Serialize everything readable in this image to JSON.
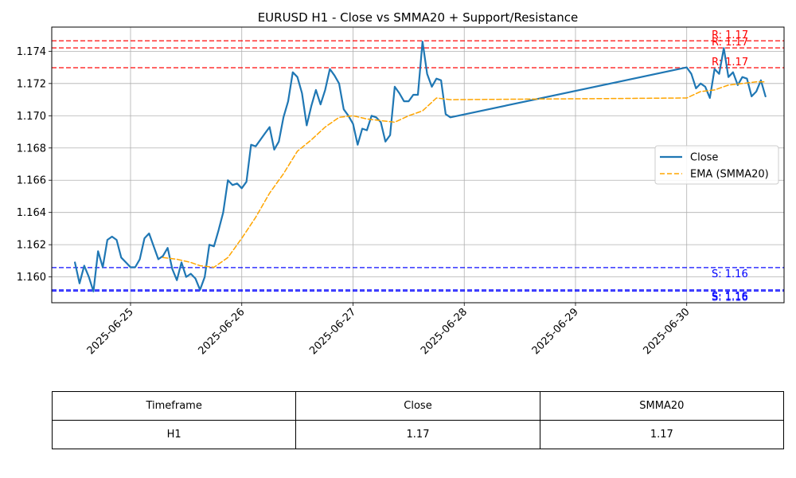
{
  "chart_data": {
    "type": "line",
    "title": "EURUSD H1 - Close vs SMMA20 + Support/Resistance",
    "xlabel": "",
    "ylabel": "",
    "ylim": [
      1.1584,
      1.1755
    ],
    "y_ticks": [
      1.16,
      1.162,
      1.164,
      1.166,
      1.168,
      1.17,
      1.172,
      1.174
    ],
    "y_tick_labels": [
      "1.160",
      "1.162",
      "1.164",
      "1.166",
      "1.168",
      "1.170",
      "1.172",
      "1.174"
    ],
    "x_tick_labels": [
      "2025-06-25",
      "2025-06-26",
      "2025-06-27",
      "2025-06-28",
      "2025-06-29",
      "2025-06-30"
    ],
    "grid": true,
    "legend": {
      "position": "center-right",
      "entries": [
        "Close",
        "EMA (SMMA20)"
      ]
    },
    "colors": {
      "close": "#1f77b4",
      "smma": "#ffa500",
      "resistance": "#ff0000",
      "support": "#0000ff"
    },
    "x_range": [
      "2025-06-24 07:00",
      "2025-06-30 21:00"
    ],
    "series": [
      {
        "name": "Close",
        "style": "solid",
        "x": [
          "2025-06-24 12:00",
          "2025-06-24 13:00",
          "2025-06-24 14:00",
          "2025-06-24 15:00",
          "2025-06-24 16:00",
          "2025-06-24 17:00",
          "2025-06-24 18:00",
          "2025-06-24 19:00",
          "2025-06-24 20:00",
          "2025-06-24 21:00",
          "2025-06-24 22:00",
          "2025-06-24 23:00",
          "2025-06-25 00:00",
          "2025-06-25 01:00",
          "2025-06-25 02:00",
          "2025-06-25 03:00",
          "2025-06-25 04:00",
          "2025-06-25 05:00",
          "2025-06-25 06:00",
          "2025-06-25 07:00",
          "2025-06-25 08:00",
          "2025-06-25 09:00",
          "2025-06-25 10:00",
          "2025-06-25 11:00",
          "2025-06-25 12:00",
          "2025-06-25 13:00",
          "2025-06-25 14:00",
          "2025-06-25 15:00",
          "2025-06-25 16:00",
          "2025-06-25 17:00",
          "2025-06-25 18:00",
          "2025-06-25 19:00",
          "2025-06-25 20:00",
          "2025-06-25 21:00",
          "2025-06-25 22:00",
          "2025-06-25 23:00",
          "2025-06-26 00:00",
          "2025-06-26 01:00",
          "2025-06-26 02:00",
          "2025-06-26 03:00",
          "2025-06-26 04:00",
          "2025-06-26 05:00",
          "2025-06-26 06:00",
          "2025-06-26 07:00",
          "2025-06-26 08:00",
          "2025-06-26 09:00",
          "2025-06-26 10:00",
          "2025-06-26 11:00",
          "2025-06-26 12:00",
          "2025-06-26 13:00",
          "2025-06-26 14:00",
          "2025-06-26 15:00",
          "2025-06-26 16:00",
          "2025-06-26 17:00",
          "2025-06-26 18:00",
          "2025-06-26 19:00",
          "2025-06-26 20:00",
          "2025-06-26 21:00",
          "2025-06-26 22:00",
          "2025-06-26 23:00",
          "2025-06-27 00:00",
          "2025-06-27 01:00",
          "2025-06-27 02:00",
          "2025-06-27 03:00",
          "2025-06-27 04:00",
          "2025-06-27 05:00",
          "2025-06-27 06:00",
          "2025-06-27 07:00",
          "2025-06-27 08:00",
          "2025-06-27 09:00",
          "2025-06-27 10:00",
          "2025-06-27 11:00",
          "2025-06-27 12:00",
          "2025-06-27 13:00",
          "2025-06-27 14:00",
          "2025-06-27 15:00",
          "2025-06-27 16:00",
          "2025-06-27 17:00",
          "2025-06-27 18:00",
          "2025-06-27 19:00",
          "2025-06-27 20:00",
          "2025-06-27 21:00",
          "2025-06-30 00:00",
          "2025-06-30 01:00",
          "2025-06-30 02:00",
          "2025-06-30 03:00",
          "2025-06-30 04:00",
          "2025-06-30 05:00",
          "2025-06-30 06:00",
          "2025-06-30 07:00",
          "2025-06-30 08:00",
          "2025-06-30 09:00",
          "2025-06-30 10:00",
          "2025-06-30 11:00",
          "2025-06-30 12:00",
          "2025-06-30 13:00",
          "2025-06-30 14:00",
          "2025-06-30 15:00",
          "2025-06-30 16:00",
          "2025-06-30 17:00"
        ],
        "values": [
          1.1609,
          1.1596,
          1.1607,
          1.16,
          1.1591,
          1.1616,
          1.1606,
          1.1623,
          1.1625,
          1.1623,
          1.1612,
          1.1609,
          1.1606,
          1.1606,
          1.1611,
          1.1624,
          1.1627,
          1.1619,
          1.1611,
          1.1613,
          1.1618,
          1.1605,
          1.1598,
          1.1609,
          1.16,
          1.1602,
          1.1599,
          1.1592,
          1.16,
          1.162,
          1.1619,
          1.1629,
          1.164,
          1.166,
          1.1657,
          1.1658,
          1.1655,
          1.1659,
          1.1682,
          1.1681,
          1.1685,
          1.1689,
          1.1693,
          1.1679,
          1.1684,
          1.1699,
          1.1709,
          1.1727,
          1.1724,
          1.1714,
          1.1694,
          1.1706,
          1.1716,
          1.1707,
          1.1716,
          1.1729,
          1.1725,
          1.172,
          1.1704,
          1.17,
          1.1695,
          1.1682,
          1.1692,
          1.1691,
          1.17,
          1.1699,
          1.1696,
          1.1684,
          1.1688,
          1.1718,
          1.1714,
          1.1709,
          1.1709,
          1.1713,
          1.1713,
          1.1746,
          1.1726,
          1.1718,
          1.1723,
          1.1722,
          1.1701,
          1.1699,
          1.173,
          1.1726,
          1.1717,
          1.172,
          1.1718,
          1.1711,
          1.1729,
          1.1726,
          1.1742,
          1.1724,
          1.1727,
          1.1719,
          1.1724,
          1.1723,
          1.1712,
          1.1715,
          1.1722,
          1.1712
        ]
      },
      {
        "name": "EMA (SMMA20)",
        "style": "dashed",
        "x": [
          "2025-06-25 07:00",
          "2025-06-25 10:00",
          "2025-06-25 13:00",
          "2025-06-25 15:00",
          "2025-06-25 18:00",
          "2025-06-25 21:00",
          "2025-06-26 00:00",
          "2025-06-26 03:00",
          "2025-06-26 06:00",
          "2025-06-26 09:00",
          "2025-06-26 12:00",
          "2025-06-26 15:00",
          "2025-06-26 18:00",
          "2025-06-26 21:00",
          "2025-06-27 00:00",
          "2025-06-27 03:00",
          "2025-06-27 06:00",
          "2025-06-27 09:00",
          "2025-06-27 12:00",
          "2025-06-27 15:00",
          "2025-06-27 18:00",
          "2025-06-27 21:00",
          "2025-06-30 00:00",
          "2025-06-30 03:00",
          "2025-06-30 06:00",
          "2025-06-30 09:00",
          "2025-06-30 12:00",
          "2025-06-30 15:00",
          "2025-06-30 17:00"
        ],
        "values": [
          1.1612,
          1.1611,
          1.1609,
          1.1607,
          1.1606,
          1.1612,
          1.1624,
          1.1637,
          1.1652,
          1.1664,
          1.1678,
          1.1685,
          1.1693,
          1.1699,
          1.17,
          1.1698,
          1.1697,
          1.1696,
          1.17,
          1.1703,
          1.1711,
          1.171,
          1.1711,
          1.1715,
          1.1716,
          1.1719,
          1.172,
          1.1721,
          1.1721
        ]
      }
    ],
    "resistance_levels": [
      {
        "value": 1.17465,
        "label": "R: 1.17"
      },
      {
        "value": 1.17421,
        "label": "R: 1.17"
      },
      {
        "value": 1.17298,
        "label": "R: 1.17"
      }
    ],
    "support_levels": [
      {
        "value": 1.16058,
        "label": "S: 1.16"
      },
      {
        "value": 1.1592,
        "label": "S: 1.16"
      },
      {
        "value": 1.15912,
        "label": "S: 1.16"
      }
    ]
  },
  "table": {
    "headers": [
      "Timeframe",
      "Close",
      "SMMA20"
    ],
    "rows": [
      [
        "H1",
        "1.17",
        "1.17"
      ]
    ]
  }
}
